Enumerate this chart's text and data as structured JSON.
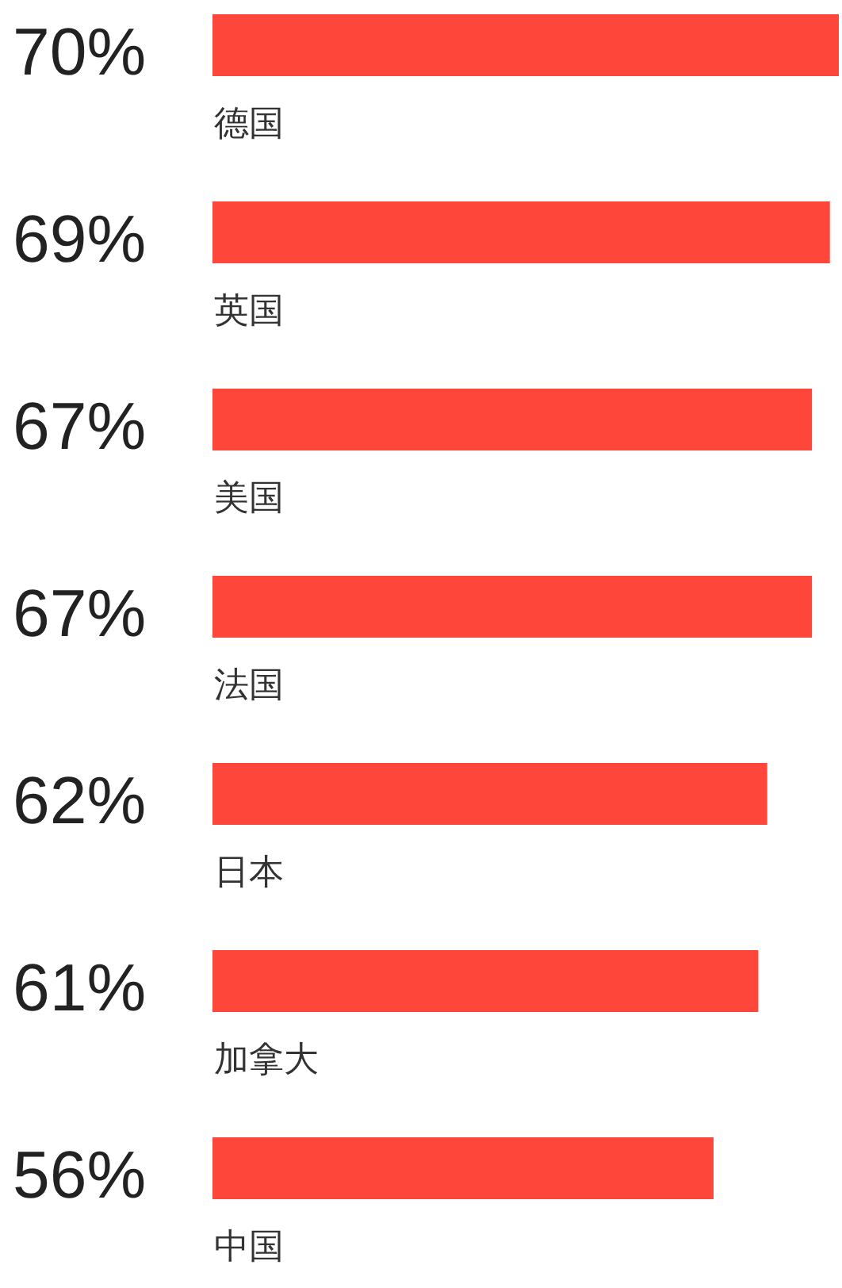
{
  "chart_data": {
    "type": "bar",
    "orientation": "horizontal",
    "categories": [
      "德国",
      "英国",
      "美国",
      "法国",
      "日本",
      "加拿大",
      "中国"
    ],
    "values": [
      70,
      69,
      67,
      67,
      62,
      61,
      56
    ],
    "value_labels": [
      "70%",
      "69%",
      "67%",
      "67%",
      "62%",
      "61%",
      "56%"
    ],
    "color": "#ff463a"
  }
}
